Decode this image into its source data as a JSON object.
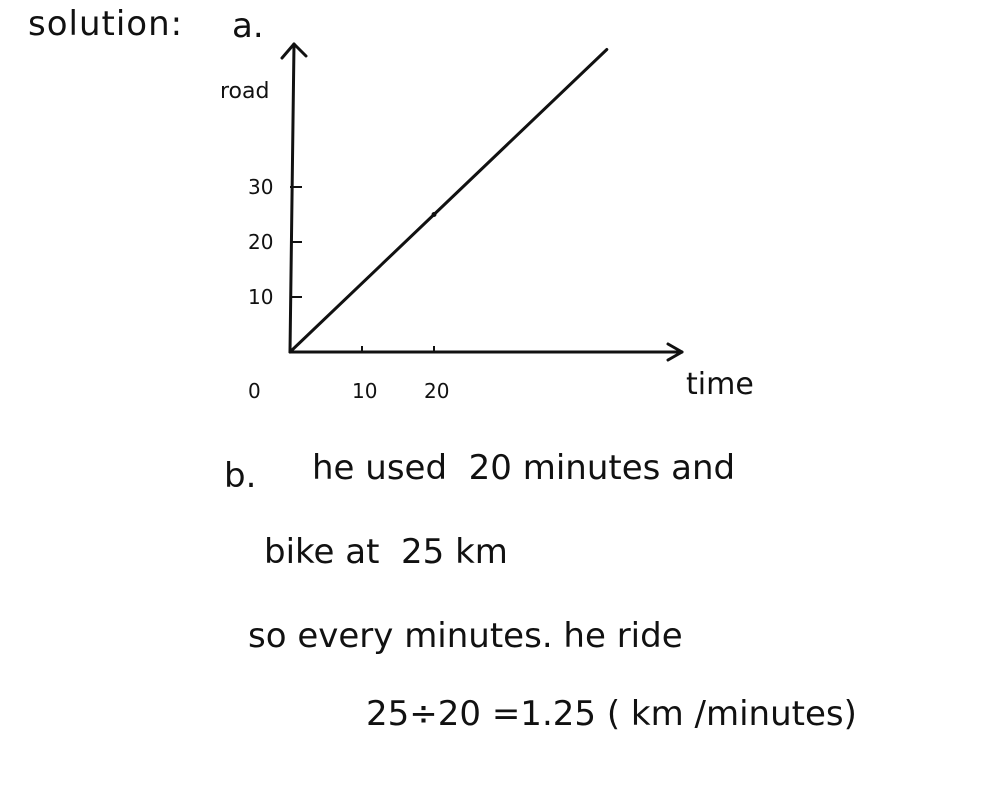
{
  "header": {
    "solution": "solution:",
    "part": "a."
  },
  "chart_data": {
    "type": "line",
    "xlabel": "time",
    "ylabel": "road",
    "origin_label": "0",
    "x_ticks": [
      10,
      20
    ],
    "y_ticks": [
      10,
      20,
      30
    ],
    "xlim": [
      0,
      45
    ],
    "ylim": [
      0,
      48
    ],
    "series": [
      {
        "x": [
          0,
          20,
          44
        ],
        "y": [
          0,
          25,
          55
        ]
      }
    ]
  },
  "part_b": {
    "letter": "b.",
    "lines": [
      "he used  20 minutes and",
      "bike at  25 km",
      "so every minutes. he ride",
      "25÷20 =1.25 ( km /minutes)"
    ]
  }
}
